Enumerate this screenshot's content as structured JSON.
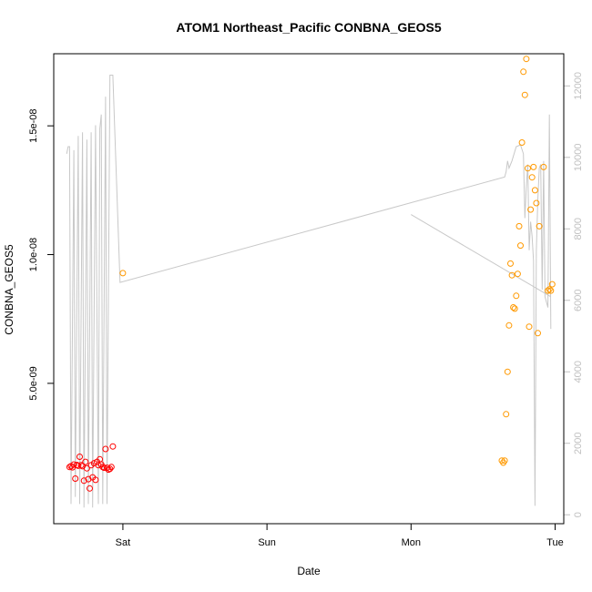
{
  "chart_data": {
    "type": "scatter",
    "title": "ATOM1 Northeast_Pacific CONBNA_GEOS5",
    "xlabel": "Date",
    "ylabel": "CONBNA_GEOS5",
    "x_unit": "days (Sat = 0)",
    "xlim": [
      -0.48,
      3.06
    ],
    "ylim": [
      -4.5e-10,
      1.78e-08
    ],
    "x_ticks": [
      {
        "value": 0,
        "label": "Sat"
      },
      {
        "value": 1,
        "label": "Sun"
      },
      {
        "value": 2,
        "label": "Mon"
      },
      {
        "value": 3,
        "label": "Tue"
      }
    ],
    "y_ticks": [
      {
        "value": 5e-09,
        "label": "5.0e-09"
      },
      {
        "value": 1e-08,
        "label": "1.0e-08"
      },
      {
        "value": 1.5e-08,
        "label": "1.5e-08"
      }
    ],
    "y2lim": [
      -250,
      12900
    ],
    "y2_ticks": [
      0,
      2000,
      4000,
      6000,
      8000,
      10000,
      12000
    ],
    "grid": false,
    "colors": {
      "series_red": "#ff0000",
      "series_orange": "#ff9900",
      "altitude_line": "#c8c8c8"
    },
    "series": [
      {
        "marker": "circle-open",
        "color": "#ff0000",
        "points": [
          [
            -0.37,
            1.75e-09
          ],
          [
            -0.36,
            1.78e-09
          ],
          [
            -0.35,
            1.74e-09
          ],
          [
            -0.34,
            1.85e-09
          ],
          [
            -0.33,
            1.3e-09
          ],
          [
            -0.32,
            1.83e-09
          ],
          [
            -0.31,
            1.8e-09
          ],
          [
            -0.3,
            2.15e-09
          ],
          [
            -0.29,
            1.82e-09
          ],
          [
            -0.28,
            1.78e-09
          ],
          [
            -0.27,
            1.22e-09
          ],
          [
            -0.26,
            1.95e-09
          ],
          [
            -0.25,
            1.7e-09
          ],
          [
            -0.24,
            1.28e-09
          ],
          [
            -0.23,
            9.2e-10
          ],
          [
            -0.22,
            1.82e-09
          ],
          [
            -0.21,
            1.35e-09
          ],
          [
            -0.2,
            1.9e-09
          ],
          [
            -0.19,
            1.25e-09
          ],
          [
            -0.18,
            1.95e-09
          ],
          [
            -0.17,
            1.82e-09
          ],
          [
            -0.16,
            2.05e-09
          ],
          [
            -0.15,
            1.85e-09
          ],
          [
            -0.14,
            1.75e-09
          ],
          [
            -0.13,
            1.72e-09
          ],
          [
            -0.12,
            2.45e-09
          ],
          [
            -0.11,
            1.72e-09
          ],
          [
            -0.1,
            1.65e-09
          ],
          [
            -0.09,
            1.68e-09
          ],
          [
            -0.08,
            1.75e-09
          ],
          [
            -0.07,
            2.55e-09
          ]
        ]
      },
      {
        "marker": "circle-open",
        "color": "#ff9900",
        "points": [
          [
            0.0,
            9.28e-09
          ],
          [
            2.63,
            2e-09
          ],
          [
            2.64,
            1.92e-09
          ],
          [
            2.65,
            2e-09
          ],
          [
            2.66,
            3.8e-09
          ],
          [
            2.67,
            5.45e-09
          ],
          [
            2.68,
            7.25e-09
          ],
          [
            2.69,
            9.65e-09
          ],
          [
            2.7,
            9.2e-09
          ],
          [
            2.71,
            7.95e-09
          ],
          [
            2.72,
            7.9e-09
          ],
          [
            2.73,
            8.4e-09
          ],
          [
            2.74,
            9.25e-09
          ],
          [
            2.75,
            1.11e-08
          ],
          [
            2.76,
            1.035e-08
          ],
          [
            2.77,
            1.435e-08
          ],
          [
            2.78,
            1.71e-08
          ],
          [
            2.79,
            1.62e-08
          ],
          [
            2.8,
            1.76e-08
          ],
          [
            2.81,
            1.335e-08
          ],
          [
            2.82,
            7.2e-09
          ],
          [
            2.83,
            1.175e-08
          ],
          [
            2.84,
            1.3e-08
          ],
          [
            2.85,
            1.34e-08
          ],
          [
            2.86,
            1.25e-08
          ],
          [
            2.87,
            1.2e-08
          ],
          [
            2.88,
            6.95e-09
          ],
          [
            2.89,
            1.11e-08
          ],
          [
            2.92,
            1.34e-08
          ],
          [
            2.95,
            8.6e-09
          ],
          [
            2.96,
            8.65e-09
          ],
          [
            2.97,
            8.6e-09
          ],
          [
            2.98,
            8.85e-09
          ]
        ]
      }
    ],
    "altitude_line": {
      "axis": "right",
      "points": [
        [
          -0.39,
          10100
        ],
        [
          -0.38,
          10300
        ],
        [
          -0.37,
          10300
        ],
        [
          -0.36,
          300
        ],
        [
          -0.34,
          10200
        ],
        [
          -0.33,
          500
        ],
        [
          -0.31,
          10600
        ],
        [
          -0.3,
          300
        ],
        [
          -0.28,
          10700
        ],
        [
          -0.27,
          200
        ],
        [
          -0.25,
          10500
        ],
        [
          -0.24,
          300
        ],
        [
          -0.22,
          10700
        ],
        [
          -0.21,
          200
        ],
        [
          -0.19,
          10900
        ],
        [
          -0.17,
          300
        ],
        [
          -0.16,
          10800
        ],
        [
          -0.15,
          11200
        ],
        [
          -0.14,
          300
        ],
        [
          -0.12,
          11700
        ],
        [
          -0.11,
          300
        ],
        [
          -0.09,
          12300
        ],
        [
          -0.07,
          12300
        ],
        [
          -0.02,
          6500
        ],
        [
          2.65,
          9450
        ],
        [
          2.66,
          9600
        ],
        [
          2.67,
          9900
        ],
        [
          2.68,
          9700
        ],
        [
          2.7,
          9900
        ],
        [
          2.73,
          10300
        ],
        [
          2.76,
          10350
        ],
        [
          2.78,
          10100
        ],
        [
          2.79,
          8300
        ],
        [
          2.8,
          9200
        ],
        [
          2.81,
          9800
        ],
        [
          2.82,
          7400
        ],
        [
          2.83,
          8200
        ],
        [
          2.84,
          7800
        ],
        [
          2.85,
          7100
        ],
        [
          2.86,
          250
        ],
        [
          2.87,
          7400
        ],
        [
          2.88,
          8800
        ],
        [
          2.89,
          9700
        ],
        [
          2.9,
          9800
        ],
        [
          2.91,
          6300
        ],
        [
          2.92,
          9900
        ],
        [
          2.93,
          6100
        ],
        [
          2.95,
          5800
        ],
        [
          2.96,
          11200
        ],
        [
          2.97,
          5200
        ]
      ],
      "points_second": [
        [
          2.0,
          8400
        ],
        [
          2.97,
          6100
        ]
      ]
    }
  }
}
